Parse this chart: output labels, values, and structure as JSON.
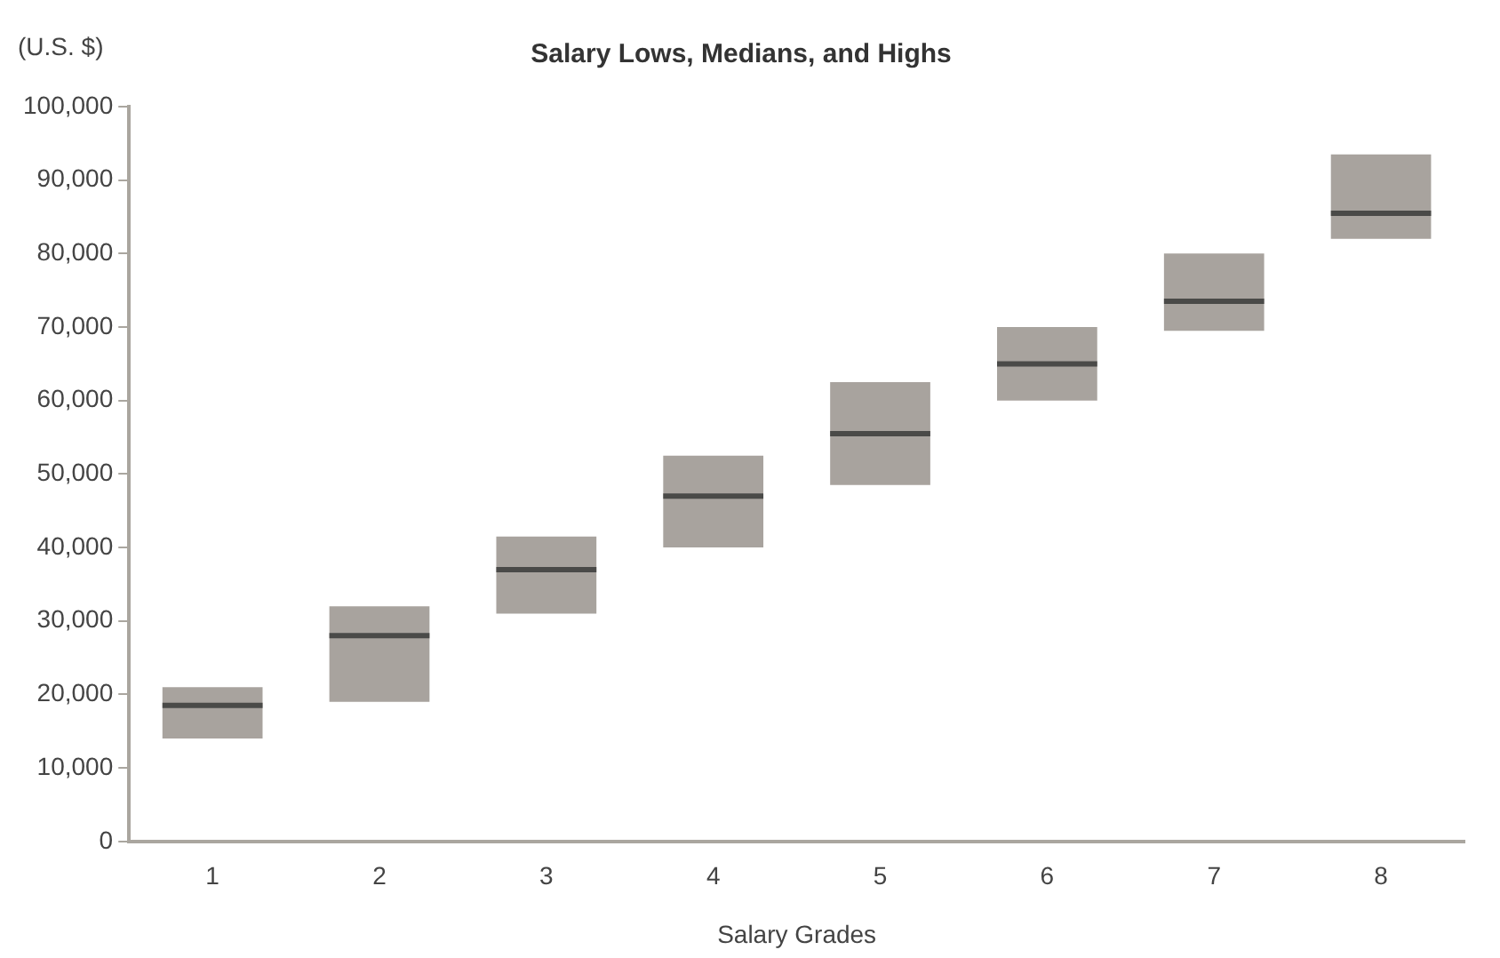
{
  "chart_data": {
    "type": "box",
    "title": "Salary Lows, Medians, and Highs",
    "ylabel": "(U.S. $)",
    "xlabel": "Salary Grades",
    "categories": [
      "1",
      "2",
      "3",
      "4",
      "5",
      "6",
      "7",
      "8"
    ],
    "color": "#a8a39e",
    "boxes": [
      {
        "low": 14000,
        "q1": 14000,
        "median": 18500,
        "q3": 21000,
        "high": 21000
      },
      {
        "low": 19000,
        "q1": 19000,
        "median": 28000,
        "q3": 32000,
        "high": 32000
      },
      {
        "low": 31000,
        "q1": 31000,
        "median": 37000,
        "q3": 41500,
        "high": 41500
      },
      {
        "low": 40000,
        "q1": 40000,
        "median": 47000,
        "q3": 52500,
        "high": 52500
      },
      {
        "low": 48500,
        "q1": 48500,
        "median": 55500,
        "q3": 62500,
        "high": 62500
      },
      {
        "low": 60000,
        "q1": 60000,
        "median": 65000,
        "q3": 70000,
        "high": 70000
      },
      {
        "low": 69500,
        "q1": 69500,
        "median": 73500,
        "q3": 80000,
        "high": 80000
      },
      {
        "low": 82000,
        "q1": 82000,
        "median": 85500,
        "q3": 93500,
        "high": 93500
      }
    ],
    "ylim": [
      0,
      100000
    ],
    "yticks": [
      {
        "value": 0,
        "label": "0"
      },
      {
        "value": 10000,
        "label": "10,000"
      },
      {
        "value": 20000,
        "label": "20,000"
      },
      {
        "value": 30000,
        "label": "30,000"
      },
      {
        "value": 40000,
        "label": "40,000"
      },
      {
        "value": 50000,
        "label": "50,000"
      },
      {
        "value": 60000,
        "label": "60,000"
      },
      {
        "value": 70000,
        "label": "70,000"
      },
      {
        "value": 80000,
        "label": "80,000"
      },
      {
        "value": 90000,
        "label": "90,000"
      },
      {
        "value": 100000,
        "label": "100,000"
      }
    ],
    "grid": false,
    "legend": false
  }
}
